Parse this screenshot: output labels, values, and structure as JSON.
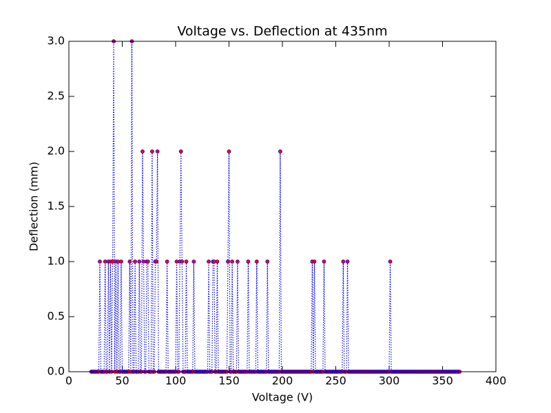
{
  "chart_data": {
    "type": "line",
    "title": "Voltage vs. Deflection at 435nm",
    "xlabel": "Voltage (V)",
    "ylabel": "Deflection (mm)",
    "x": [
      21,
      22,
      23,
      24,
      25,
      26,
      27,
      28,
      29,
      30,
      31,
      32,
      33,
      34,
      35,
      36,
      37,
      38,
      39,
      40,
      41,
      42,
      43,
      44,
      45,
      46,
      47,
      48,
      49,
      50,
      51,
      52,
      53,
      54,
      55,
      56,
      57,
      58,
      59,
      60,
      61,
      62,
      63,
      64,
      65,
      66,
      67,
      68,
      69,
      70,
      71,
      72,
      73,
      74,
      75,
      76,
      77,
      78,
      79,
      80,
      81,
      82,
      83,
      84,
      85,
      86,
      87,
      88,
      89,
      90,
      91,
      92,
      93,
      94,
      95,
      96,
      97,
      98,
      99,
      100,
      101,
      102,
      103,
      104,
      105,
      106,
      107,
      108,
      109,
      110,
      111,
      112,
      113,
      114,
      115,
      116,
      117,
      118,
      119,
      120,
      121,
      122,
      123,
      124,
      125,
      126,
      127,
      128,
      129,
      130,
      131,
      132,
      133,
      134,
      135,
      136,
      137,
      138,
      139,
      140,
      141,
      142,
      143,
      144,
      145,
      146,
      147,
      148,
      149,
      150,
      151,
      152,
      153,
      154,
      155,
      156,
      157,
      158,
      159,
      160,
      161,
      162,
      163,
      164,
      165,
      166,
      167,
      168,
      169,
      170,
      171,
      172,
      173,
      174,
      175,
      176,
      177,
      178,
      179,
      180,
      181,
      182,
      183,
      184,
      185,
      186,
      187,
      188,
      189,
      190,
      191,
      192,
      193,
      194,
      195,
      196,
      197,
      198,
      199,
      200,
      201,
      202,
      203,
      204,
      205,
      206,
      207,
      208,
      209,
      210,
      211,
      212,
      213,
      214,
      215,
      216,
      217,
      218,
      219,
      220,
      221,
      222,
      223,
      224,
      225,
      226,
      227,
      228,
      229,
      230,
      231,
      232,
      233,
      234,
      235,
      236,
      237,
      238,
      239,
      240,
      241,
      242,
      243,
      244,
      245,
      246,
      247,
      248,
      249,
      250,
      251,
      252,
      253,
      254,
      255,
      256,
      257,
      258,
      259,
      260,
      261,
      262,
      263,
      264,
      265,
      266,
      267,
      268,
      269,
      270,
      271,
      272,
      273,
      274,
      275,
      276,
      277,
      278,
      279,
      280,
      281,
      282,
      283,
      284,
      285,
      286,
      287,
      288,
      289,
      290,
      291,
      292,
      293,
      294,
      295,
      296,
      297,
      298,
      299,
      300,
      301,
      302,
      303,
      304,
      305,
      306,
      307,
      308,
      309,
      310,
      311,
      312,
      313,
      314,
      315,
      316,
      317,
      318,
      319,
      320,
      321,
      322,
      323,
      324,
      325,
      326,
      327,
      328,
      329,
      330,
      331,
      332,
      333,
      334,
      335,
      336,
      337,
      338,
      339,
      340,
      341,
      342,
      343,
      344,
      345,
      346,
      347,
      348,
      349,
      350,
      351,
      352,
      353,
      354,
      355,
      356,
      357,
      358,
      359,
      360,
      361,
      362,
      363,
      364,
      365,
      366
    ],
    "values": [
      0,
      0,
      0,
      0,
      0,
      0,
      0,
      0,
      1,
      0,
      0,
      0,
      0,
      1,
      0,
      0,
      1,
      0,
      1,
      0,
      1,
      3,
      0,
      1,
      0,
      1,
      0,
      0,
      1,
      0,
      0,
      0,
      0,
      0,
      0,
      0,
      1,
      0,
      3,
      0,
      0,
      1,
      0,
      0,
      0,
      1,
      0,
      0,
      2,
      1,
      0,
      0,
      1,
      1,
      0,
      0,
      0,
      2,
      0,
      0,
      1,
      1,
      2,
      0,
      0,
      0,
      0,
      0,
      0,
      0,
      0,
      1,
      0,
      0,
      0,
      0,
      0,
      0,
      0,
      0,
      1,
      0,
      0,
      1,
      2,
      1,
      0,
      0,
      0,
      1,
      0,
      0,
      0,
      0,
      0,
      0,
      1,
      0,
      0,
      0,
      0,
      0,
      0,
      0,
      0,
      0,
      0,
      0,
      0,
      0,
      1,
      0,
      0,
      0,
      1,
      1,
      0,
      0,
      1,
      0,
      0,
      0,
      0,
      0,
      0,
      0,
      0,
      0,
      1,
      2,
      0,
      0,
      1,
      0,
      0,
      0,
      0,
      1,
      0,
      0,
      0,
      0,
      0,
      0,
      0,
      0,
      0,
      1,
      0,
      0,
      0,
      0,
      0,
      0,
      0,
      1,
      0,
      0,
      0,
      0,
      0,
      0,
      0,
      0,
      0,
      1,
      0,
      0,
      0,
      0,
      0,
      0,
      0,
      0,
      0,
      0,
      0,
      2,
      0,
      0,
      0,
      0,
      0,
      0,
      0,
      0,
      0,
      0,
      0,
      0,
      0,
      0,
      0,
      0,
      0,
      0,
      0,
      0,
      0,
      0,
      0,
      0,
      0,
      0,
      0,
      0,
      0,
      1,
      0,
      1,
      0,
      0,
      0,
      0,
      0,
      0,
      0,
      0,
      1,
      0,
      0,
      0,
      0,
      0,
      0,
      0,
      0,
      0,
      0,
      0,
      0,
      0,
      0,
      0,
      0,
      0,
      1,
      0,
      0,
      0,
      1,
      0,
      0,
      0,
      0,
      0,
      0,
      0,
      0,
      0,
      0,
      0,
      0,
      0,
      0,
      0,
      0,
      0,
      0,
      0,
      0,
      0,
      0,
      0,
      0,
      0,
      0,
      0,
      0,
      0,
      0,
      0,
      0,
      0,
      0,
      0,
      0,
      0,
      0,
      0,
      1,
      0,
      0,
      0,
      0,
      0,
      0,
      0,
      0,
      0,
      0,
      0,
      0,
      0,
      0,
      0,
      0,
      0,
      0,
      0,
      0,
      0,
      0,
      0,
      0,
      0,
      0,
      0,
      0,
      0,
      0,
      0,
      0,
      0,
      0,
      0,
      0,
      0,
      0,
      0,
      0,
      0,
      0,
      0,
      0,
      0,
      0,
      0,
      0,
      0,
      0,
      0,
      0,
      0,
      0,
      0,
      0,
      0,
      0,
      0,
      0,
      0,
      0,
      0,
      0,
      0
    ],
    "color": "#0000ff",
    "marker_color": "#ff0000",
    "line_style": "dotted",
    "xlim": [
      0,
      400
    ],
    "xticks": [
      0,
      50,
      100,
      150,
      200,
      250,
      300,
      350,
      400
    ],
    "ylim": [
      0,
      3
    ],
    "yticks": [
      {
        "value": 0,
        "label": "0.0"
      },
      0.5,
      {
        "value": 1,
        "label": "1.0"
      },
      1.5,
      {
        "value": 2,
        "label": "2.0"
      },
      2.5,
      {
        "value": 3,
        "label": "3.0"
      }
    ],
    "grid": false
  }
}
